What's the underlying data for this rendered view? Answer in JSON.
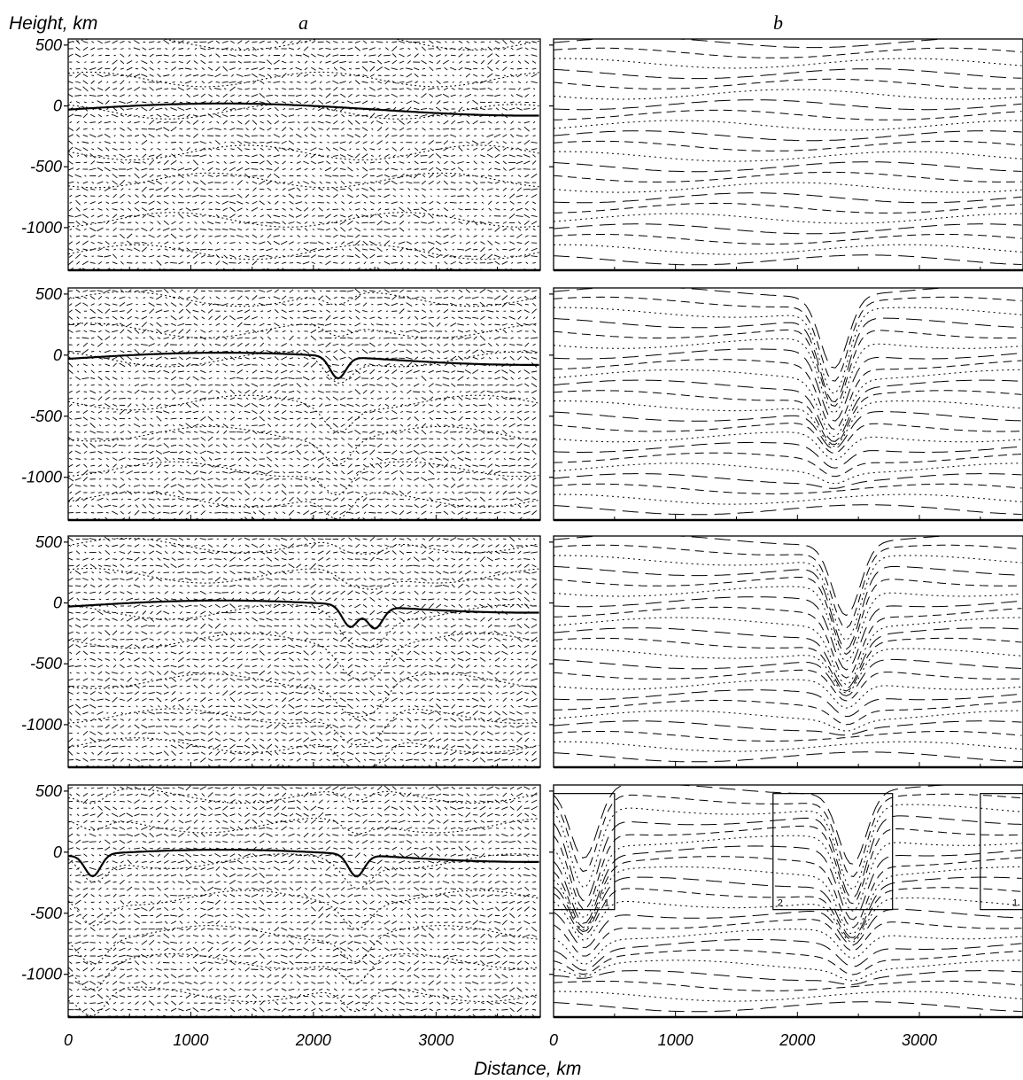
{
  "figure": {
    "y_axis_title": "Height, km",
    "x_axis_title": "Distance, km",
    "columns": [
      "a",
      "b"
    ]
  },
  "chart_data": {
    "type": "vector field and isoline sections (8 panels: 4 rows × 2 columns)",
    "x_axis": {
      "label": "Distance, km",
      "range": [
        0,
        3850
      ],
      "ticks": [
        0,
        1000,
        2000,
        3000
      ],
      "tick_labels": [
        "0",
        "1000",
        "2000",
        "3000"
      ]
    },
    "y_axis": {
      "label": "Height, km",
      "range": [
        -1350,
        550
      ],
      "ticks": [
        500,
        0,
        -500,
        -1000
      ],
      "tick_labels": [
        "500",
        "0",
        "-500",
        "-1000"
      ]
    },
    "panels": [
      {
        "row": 1,
        "column": "a",
        "content": "velocity vectors with isolines",
        "interface_depressions_km": []
      },
      {
        "row": 1,
        "column": "b",
        "content": "streamlines",
        "interface_depressions_km": []
      },
      {
        "row": 2,
        "column": "a",
        "content": "velocity vectors with isolines",
        "interface_depressions_km": [
          2200
        ]
      },
      {
        "row": 2,
        "column": "b",
        "content": "streamlines",
        "interface_depressions_km": [
          2300
        ]
      },
      {
        "row": 3,
        "column": "a",
        "content": "velocity vectors with isolines",
        "interface_depressions_km": [
          2300,
          2500
        ]
      },
      {
        "row": 3,
        "column": "b",
        "content": "streamlines",
        "interface_depressions_km": [
          2400
        ]
      },
      {
        "row": 4,
        "column": "a",
        "content": "velocity vectors with isolines",
        "interface_depressions_km": [
          200,
          2350
        ]
      },
      {
        "row": 4,
        "column": "b",
        "content": "streamlines",
        "interface_depressions_km": [
          250,
          2450
        ],
        "boxes": [
          {
            "label": "1",
            "x_range": [
              0,
              500
            ],
            "y_range": [
              -470,
              480
            ]
          },
          {
            "label": "2",
            "x_range": [
              1800,
              2780
            ],
            "y_range": [
              -470,
              480
            ]
          },
          {
            "label": "1",
            "x_range": [
              3500,
              3850
            ],
            "y_range": [
              -470,
              480
            ]
          }
        ]
      }
    ]
  }
}
